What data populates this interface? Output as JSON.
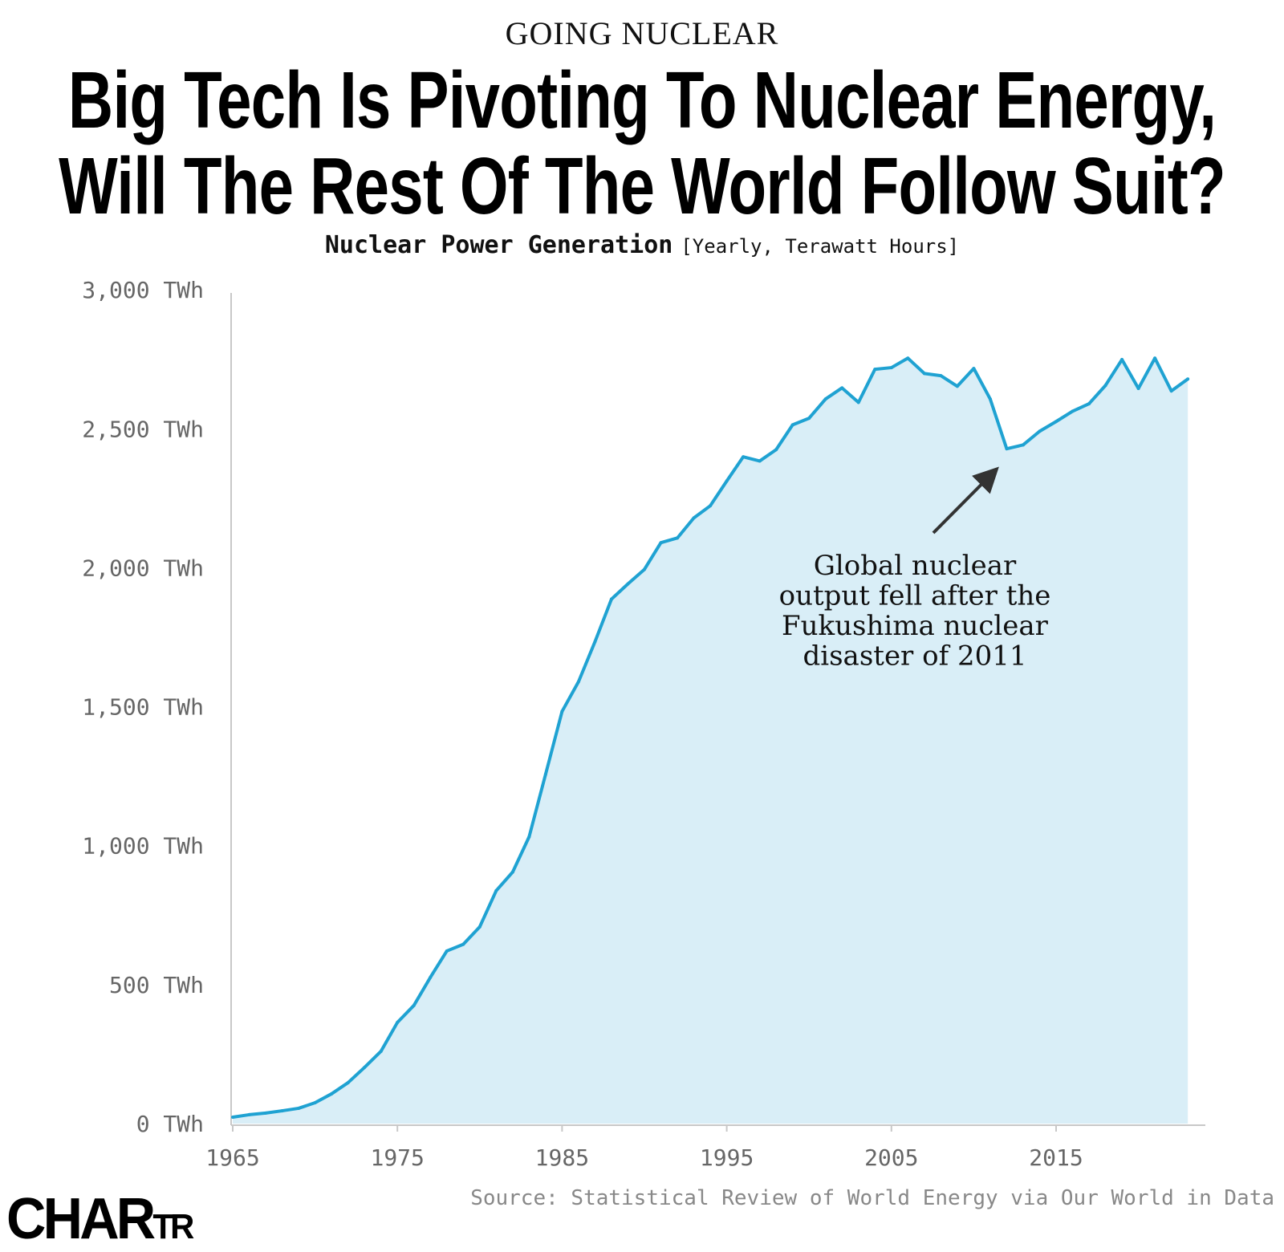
{
  "header": {
    "kicker": "GOING NUCLEAR",
    "title_line1": "Big Tech Is Pivoting To Nuclear Energy,",
    "title_line2": "Will The Rest Of The World Follow Suit?",
    "subtitle_main": "Nuclear Power Generation",
    "subtitle_unit": "[Yearly, Terawatt Hours]"
  },
  "footer": {
    "logo_big": "CHAR",
    "logo_small": "TR",
    "source": "Source: Statistical Review of World Energy via Our World in Data"
  },
  "colors": {
    "line": "#1fa2d2",
    "fill": "#d9eef7",
    "axis": "#c8c8c8",
    "arrow": "#333333"
  },
  "chart_data": {
    "type": "area",
    "title": "Nuclear Power Generation",
    "ylabel": "[Yearly, Terawatt Hours]",
    "xlim": [
      1965,
      2023
    ],
    "ylim": [
      0,
      3000
    ],
    "grid": false,
    "x_ticks": [
      1965,
      1975,
      1985,
      1995,
      2005,
      2015
    ],
    "x_tick_labels": [
      "1965",
      "1975",
      "1985",
      "1995",
      "2005",
      "2015"
    ],
    "y_ticks": [
      0,
      500,
      1000,
      1500,
      2000,
      2500,
      3000
    ],
    "y_tick_labels": [
      "0 TWh",
      "500 TWh",
      "1,000 TWh",
      "1,500 TWh",
      "2,000 TWh",
      "2,500 TWh",
      "3,000 TWh"
    ],
    "x": [
      1965,
      1966,
      1967,
      1968,
      1969,
      1970,
      1971,
      1972,
      1973,
      1974,
      1975,
      1976,
      1977,
      1978,
      1979,
      1980,
      1981,
      1982,
      1983,
      1984,
      1985,
      1986,
      1987,
      1988,
      1989,
      1990,
      1991,
      1992,
      1993,
      1994,
      1995,
      1996,
      1997,
      1998,
      1999,
      2000,
      2001,
      2002,
      2003,
      2004,
      2005,
      2006,
      2007,
      2008,
      2009,
      2010,
      2011,
      2012,
      2013,
      2014,
      2015,
      2016,
      2017,
      2018,
      2019,
      2020,
      2021,
      2022,
      2023
    ],
    "values": [
      23,
      32,
      38,
      46,
      55,
      75,
      107,
      147,
      202,
      260,
      364,
      425,
      526,
      621,
      645,
      708,
      838,
      905,
      1032,
      1257,
      1483,
      1590,
      1734,
      1887,
      1942,
      1994,
      2090,
      2107,
      2179,
      2223,
      2312,
      2399,
      2384,
      2425,
      2514,
      2538,
      2607,
      2647,
      2595,
      2714,
      2720,
      2754,
      2699,
      2691,
      2653,
      2717,
      2607,
      2428,
      2442,
      2491,
      2526,
      2563,
      2590,
      2656,
      2749,
      2645,
      2754,
      2636,
      2679
    ],
    "annotation": {
      "lines": [
        "Global nuclear",
        "output fell after the",
        "Fukushima nuclear",
        "disaster of 2011"
      ],
      "points_to_year": 2012
    }
  }
}
